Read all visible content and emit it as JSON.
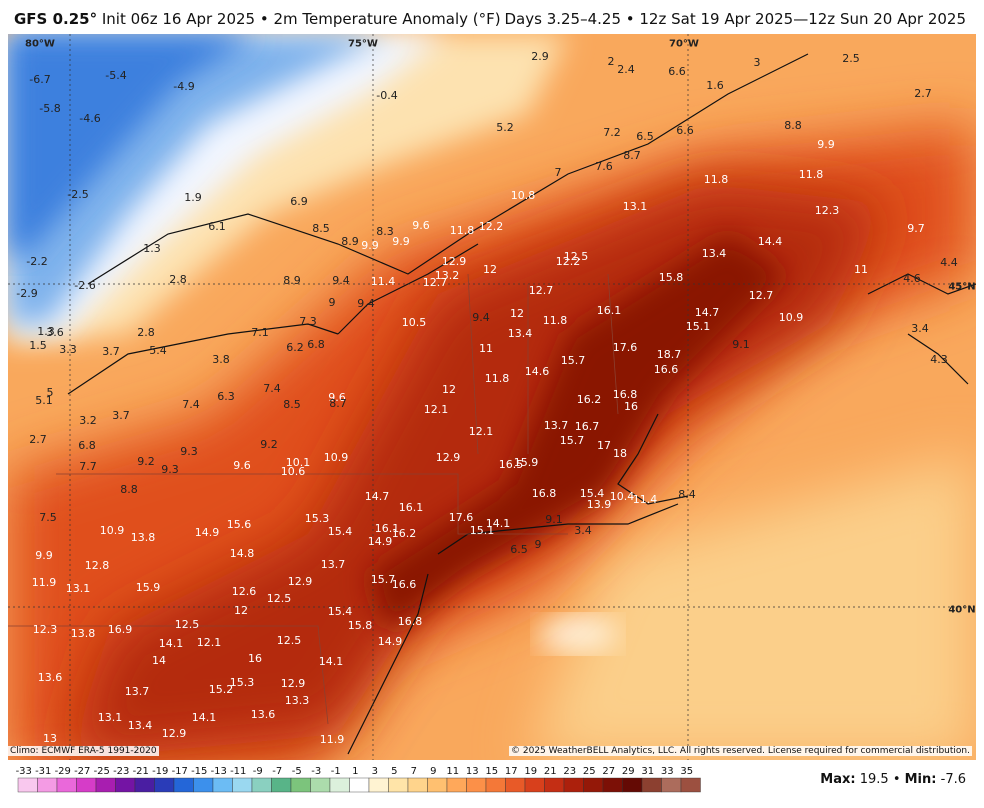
{
  "header": {
    "model": "GFS 0.25°",
    "title": "Init 06z 16 Apr 2025 • 2m Temperature Anomaly (°F)",
    "valid": "Days 3.25–4.25 • 12z Sat 19 Apr 2025—12z Sun 20 Apr 2025"
  },
  "grid_labels": [
    "80°W",
    "75°W",
    "70°W",
    "45°N",
    "40°N"
  ],
  "labels": [
    -6.7,
    -5.4,
    -4.9,
    -5.8,
    -4.6,
    -2.5,
    1.9,
    6.9,
    6.1,
    8.5,
    1.3,
    8.3,
    8.9,
    9.9,
    9.9,
    9.6,
    11.8,
    12.2,
    -0.4,
    5.2,
    2.9,
    2.0,
    2.4,
    6.6,
    1.6,
    3.0,
    2.5,
    2.7,
    7.2,
    6.5,
    6.6,
    8.8,
    9.9,
    7.0,
    7.6,
    8.7,
    10.8,
    13.1,
    11.8,
    11.8,
    12.3,
    9.7,
    14.4,
    13.4,
    12.5,
    12.2,
    12.0,
    12.9,
    13.2,
    12.7,
    11.4,
    9.4,
    8.9,
    -2.2,
    -2.9,
    -2.6,
    2.8,
    9.0,
    9.4,
    10.5,
    9.4,
    12.0,
    12.7,
    13.4,
    11.8,
    16.1,
    15.8,
    14.7,
    15.1,
    12.7,
    10.9,
    11.0,
    4.6,
    4.4,
    3.4,
    4.3,
    9.1,
    17.6,
    18.7,
    16.6,
    15.7,
    11.0,
    11.8,
    14.6,
    16.2,
    16.8,
    16.0,
    12.0,
    12.1,
    9.6,
    8.7,
    8.5,
    7.4,
    6.3,
    7.4,
    6.8,
    6.2,
    7.1,
    7.3,
    2.8,
    3.8,
    5.4,
    3.7,
    3.3,
    1.5,
    1.3,
    3.6,
    5.0,
    5.1,
    3.2,
    3.7,
    2.7,
    6.8,
    7.7,
    9.2,
    9.3,
    9.3,
    9.6,
    9.2,
    10.1,
    10.6,
    10.9,
    12.9,
    12.1,
    13.7,
    16.7,
    15.7,
    17.0,
    18.0,
    16.5,
    15.9,
    16.8,
    15.4,
    10.4,
    11.4,
    8.4,
    13.9,
    8.8,
    7.5,
    10.9,
    13.8,
    14.9,
    15.6,
    15.3,
    14.7,
    16.1,
    15.4,
    16.1,
    16.2,
    14.9,
    17.6,
    14.1,
    15.1,
    9.1,
    3.4,
    6.5,
    9.0,
    9.9,
    12.8,
    14.8,
    13.7,
    15.7,
    16.6,
    11.9,
    13.1,
    15.9,
    12.9,
    12.6,
    12.5,
    12.0,
    15.4,
    15.8,
    16.8,
    12.3,
    13.8,
    16.9,
    12.5,
    14.1,
    12.1,
    12.5,
    14.9,
    14.0,
    16.0,
    14.1,
    13.6,
    15.3,
    15.2,
    12.9,
    13.7,
    13.3,
    13.1,
    14.1,
    13.6,
    13.4,
    12.9,
    11.9,
    13.0
  ],
  "footer": {
    "climo": "Climo: ECMWF ERA-5 1991-2020",
    "copyright": "© 2025 WeatherBELL Analytics, LLC. All rights reserved. License required for commercial distribution."
  },
  "colorbar": {
    "ticks": [
      -33,
      -31,
      -29,
      -27,
      -25,
      -23,
      -21,
      -19,
      -17,
      -15,
      -13,
      -11,
      -9,
      -7,
      -5,
      -3,
      -1,
      1,
      3,
      5,
      7,
      9,
      11,
      13,
      15,
      17,
      19,
      21,
      23,
      25,
      27,
      29,
      31,
      33,
      35
    ],
    "colors": [
      "#f9c8ee",
      "#f49be4",
      "#ea68da",
      "#d63cc8",
      "#a81eb0",
      "#7414a4",
      "#4a1ea2",
      "#2a3cb8",
      "#2466d8",
      "#3c90ec",
      "#6cbcf4",
      "#9ad8f0",
      "#8ad0c0",
      "#58b488",
      "#7cc47c",
      "#acdcac",
      "#dcf0dc",
      "#ffffff",
      "#fff3d2",
      "#ffe4a8",
      "#ffd48c",
      "#ffc070",
      "#ffa85a",
      "#fc9048",
      "#f47838",
      "#e85a28",
      "#d8401c",
      "#c42e14",
      "#ac200c",
      "#941808",
      "#7c1006",
      "#640a04",
      "#8c4030",
      "#ac6c5c",
      "#9c5040"
    ]
  },
  "stats": {
    "max_label": "Max:",
    "max": 19.5,
    "sep": "•",
    "min_label": "Min:",
    "min": -7.6
  }
}
